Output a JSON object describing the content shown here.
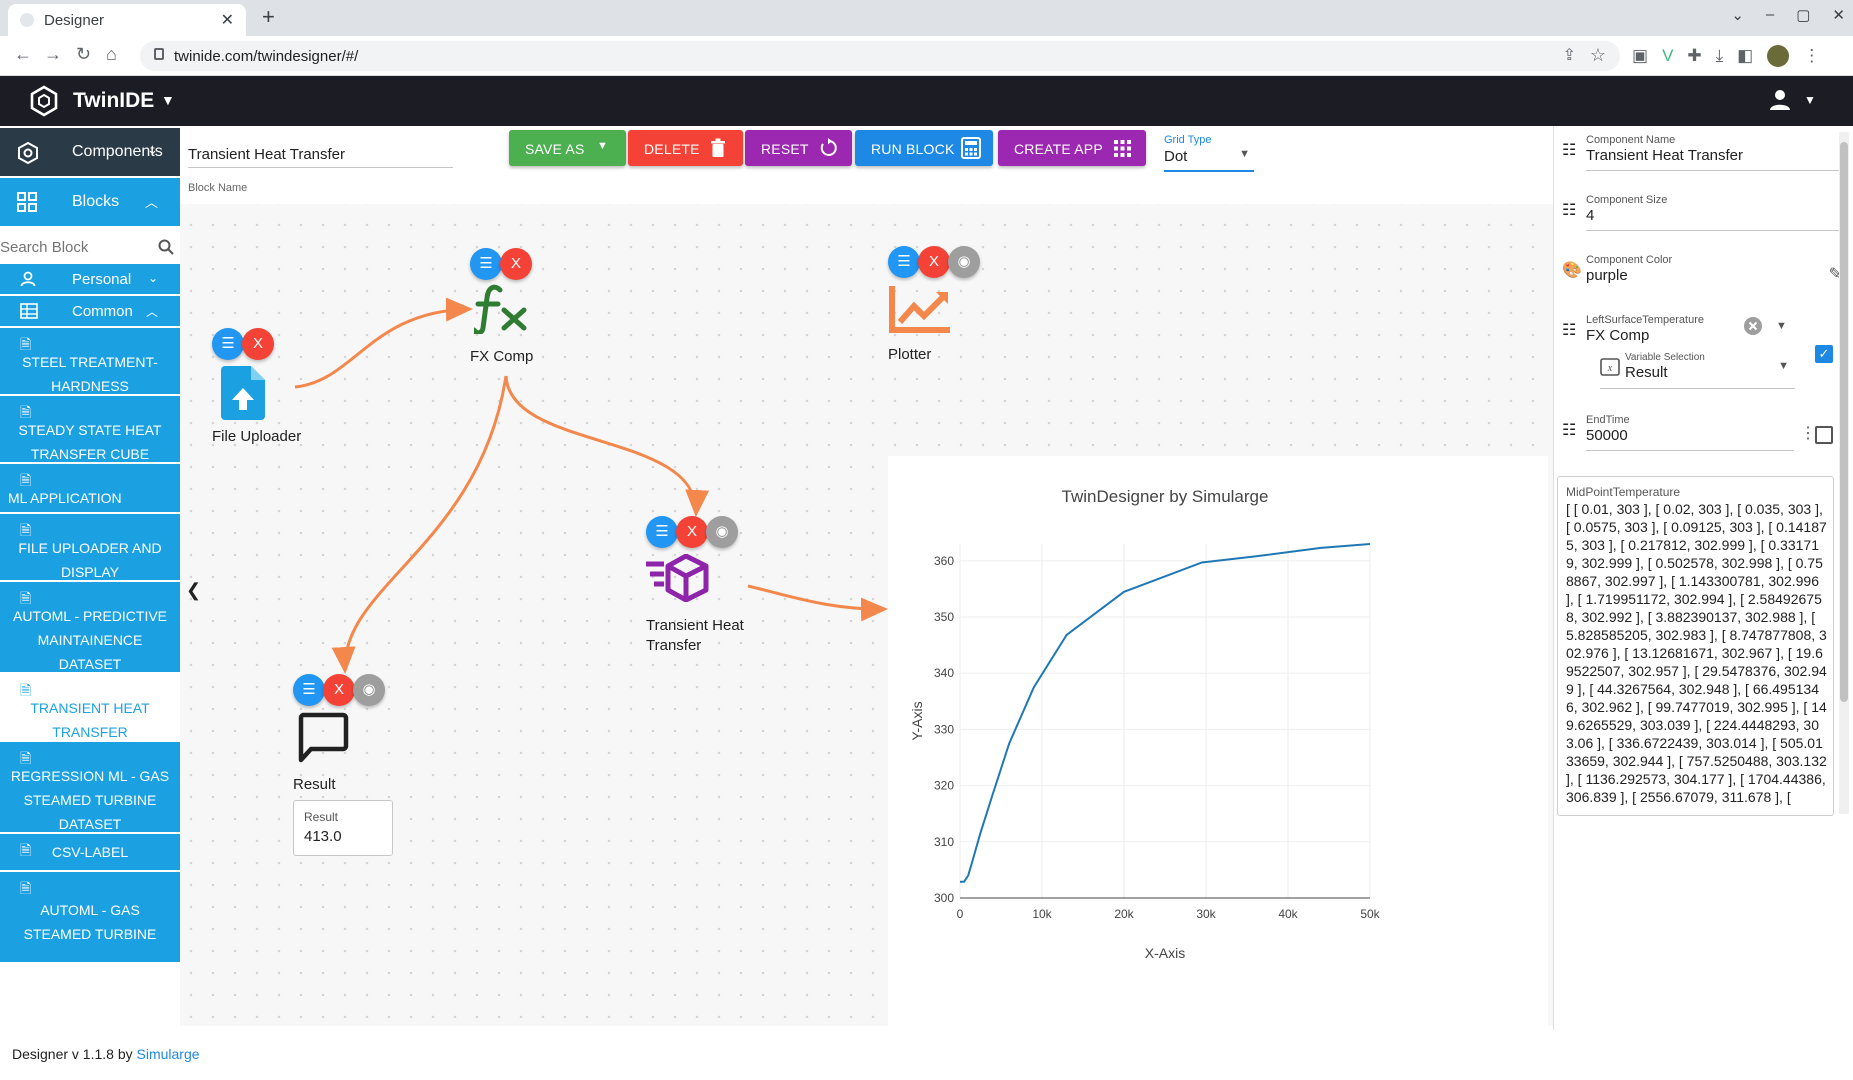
{
  "browser": {
    "tab_title": "Designer",
    "url": "twinide.com/twindesigner/#/"
  },
  "app": {
    "title": "TwinIDE"
  },
  "sidebar": {
    "components_label": "Components",
    "blocks_label": "Blocks",
    "search_placeholder": "Search Block",
    "personal_label": "Personal",
    "common_label": "Common",
    "items": [
      {
        "label": "STEEL TREATMENT-HARDNESS"
      },
      {
        "label": "STEADY STATE HEAT TRANSFER CUBE"
      },
      {
        "label": "ML APPLICATION"
      },
      {
        "label": "FILE UPLOADER AND DISPLAY"
      },
      {
        "label": "AUTOML - PREDICTIVE MAINTAINENCE DATASET"
      },
      {
        "label": "TRANSIENT HEAT TRANSFER"
      },
      {
        "label": "REGRESSION ML - GAS STEAMED TURBINE DATASET"
      },
      {
        "label": "CSV-LABEL"
      },
      {
        "label": "AUTOML - GAS STEAMED TURBINE"
      }
    ]
  },
  "toolbar": {
    "block_name_value": "Transient Heat Transfer",
    "block_name_label": "Block Name",
    "save_as": "SAVE AS",
    "delete": "DELETE",
    "reset": "RESET",
    "run_block": "RUN BLOCK",
    "create_app": "CREATE APP",
    "grid_type_label": "Grid Type",
    "grid_type_value": "Dot"
  },
  "nodes": {
    "file_uploader": "File Uploader",
    "fx_comp": "FX Comp",
    "plotter": "Plotter",
    "transient": "Transient Heat Transfer",
    "result": "Result",
    "delete_label": "X",
    "result_box_label": "Result",
    "result_box_value": "413.0"
  },
  "chart_data": {
    "type": "line",
    "title": "TwinDesigner by Simularge",
    "xlabel": "X-Axis",
    "ylabel": "Y-Axis",
    "xlim": [
      0,
      50000
    ],
    "ylim": [
      300,
      363
    ],
    "xticks": [
      0,
      10000,
      20000,
      30000,
      40000,
      50000
    ],
    "xtick_labels": [
      "0",
      "10k",
      "20k",
      "30k",
      "40k",
      "50k"
    ],
    "yticks": [
      300,
      310,
      320,
      330,
      340,
      350,
      360
    ],
    "grid": true,
    "series": [
      {
        "color": "#1f77b4",
        "x": [
          0,
          500,
          1000,
          1500,
          2500,
          4000,
          6000,
          9000,
          13000,
          20000,
          29500,
          36000,
          44000,
          50000
        ],
        "y": [
          302.9,
          302.9,
          304.0,
          306.5,
          311.6,
          318.5,
          327.5,
          337.5,
          346.8,
          354.5,
          359.7,
          360.8,
          362.3,
          363.0
        ]
      }
    ]
  },
  "props": {
    "component_name_label": "Component Name",
    "component_name_value": "Transient Heat Transfer",
    "component_size_label": "Component Size",
    "component_size_value": "4",
    "component_color_label": "Component Color",
    "component_color_value": "purple",
    "left_surface_label": "LeftSurfaceTemperature",
    "left_surface_value": "FX Comp",
    "variable_selection_label": "Variable Selection",
    "variable_selection_value": "Result",
    "end_time_label": "EndTime",
    "end_time_value": "50000",
    "midpoint_label": "MidPointTemperature",
    "midpoint_value": "[ [ 0.01, 303 ], [ 0.02, 303 ], [ 0.035, 303 ], [ 0.0575, 303 ], [ 0.09125, 303 ], [ 0.141875, 303 ], [ 0.217812, 302.999 ], [ 0.331719, 302.999 ], [ 0.502578, 302.998 ], [ 0.758867, 302.997 ], [ 1.143300781, 302.996 ], [ 1.719951172, 302.994 ], [ 2.584926758, 302.992 ], [ 3.882390137, 302.988 ], [ 5.828585205, 302.983 ], [ 8.747877808, 302.976 ], [ 13.12681671, 302.967 ], [ 19.69522507, 302.957 ], [ 29.5478376, 302.949 ], [ 44.3267564, 302.948 ], [ 66.4951346, 302.962 ], [ 99.7477019, 302.995 ], [ 149.6265529, 303.039 ], [ 224.4448293, 303.06 ], [ 336.6722439, 303.014 ], [ 505.0133659, 302.944 ], [ 757.5250488, 303.132 ], [ 1136.292573, 304.177 ], [ 1704.44386, 306.839 ], [ 2556.67079, 311.678 ], ["
  },
  "footer": {
    "text": "Designer v 1.1.8 by",
    "link": "Simularge"
  },
  "colors": {
    "appbar": "#1c1c24",
    "sidebar_accent": "#1ba1e2",
    "save": "#4caf50",
    "delete": "#f44336",
    "purple": "#9c27b0",
    "blue": "#1e88e5",
    "edge": "#f4874b"
  }
}
